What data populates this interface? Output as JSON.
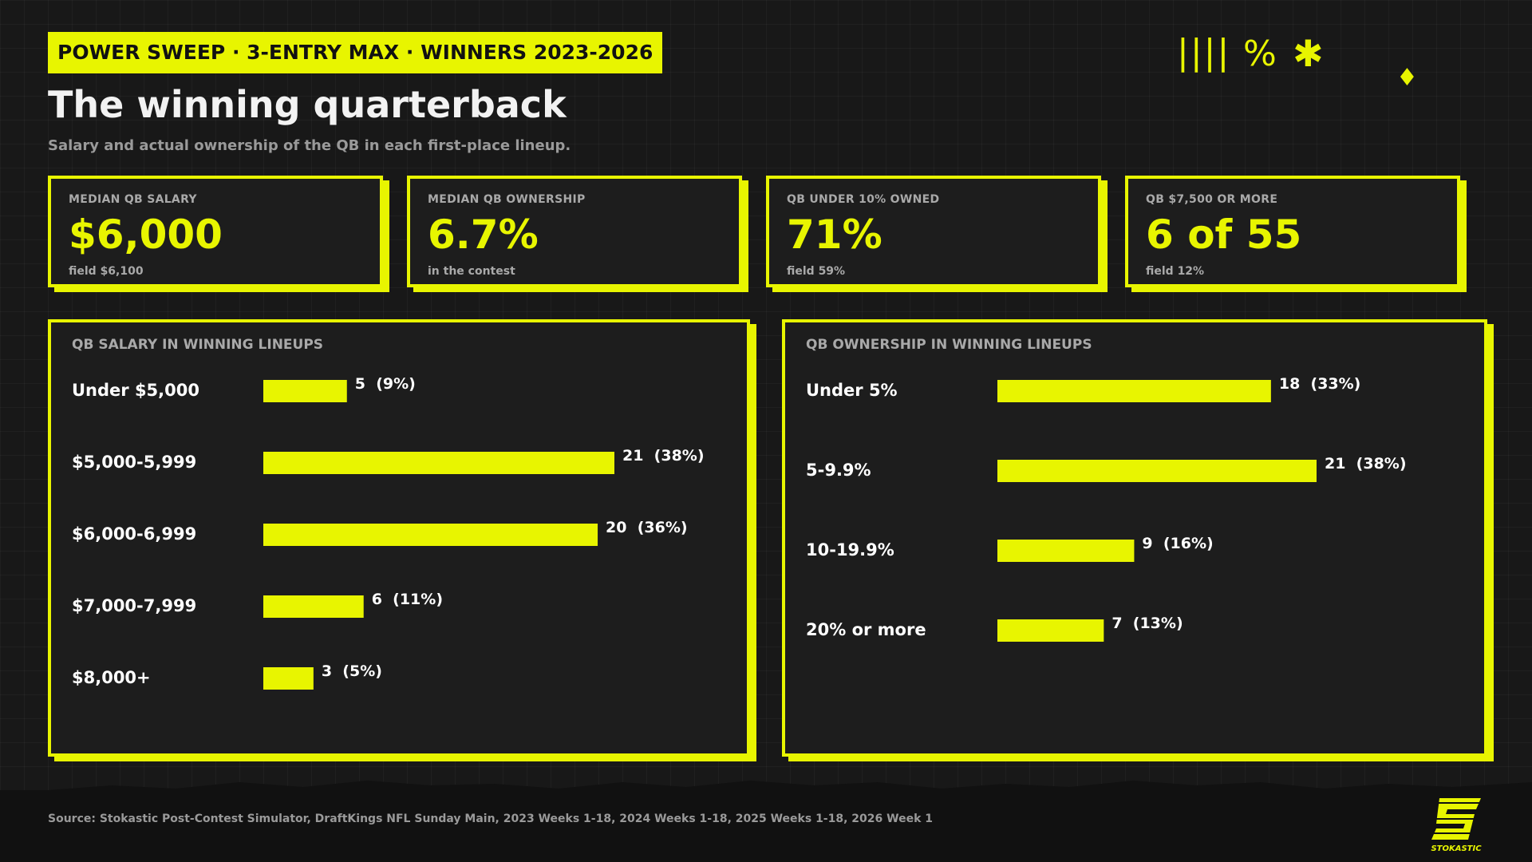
{
  "header": {
    "tagline": "POWER SWEEP · 3-ENTRY MAX · WINNERS 2023-2026",
    "title": "The winning quarterback",
    "subtitle": "Salary and actual ownership of the QB in each first-place lineup."
  },
  "decor": {
    "lines": "||||",
    "percent": "%",
    "asterisk": "✱",
    "diamond": "♦"
  },
  "kpis": [
    {
      "label": "MEDIAN QB SALARY",
      "value": "$6,000",
      "note": "field $6,100"
    },
    {
      "label": "MEDIAN QB OWNERSHIP",
      "value": "6.7%",
      "note": "in the contest"
    },
    {
      "label": "QB UNDER 10% OWNED",
      "value": "71%",
      "note": "field 59%"
    },
    {
      "label": "QB $7,500 OR MORE",
      "value": "6 of 55",
      "note": "field 12%"
    }
  ],
  "chart_data": [
    {
      "type": "bar",
      "orientation": "horizontal",
      "title": "QB SALARY IN WINNING LINEUPS",
      "categories": [
        "Under $5,000",
        "$5,000-5,999",
        "$6,000-6,999",
        "$7,000-7,999",
        "$8,000+"
      ],
      "values": [
        5,
        21,
        20,
        6,
        3
      ],
      "labels": [
        "5  (9%)",
        "21  (38%)",
        "20  (36%)",
        "6  (11%)",
        "3  (5%)"
      ],
      "xlim": [
        0,
        21
      ],
      "grid": false,
      "color": "#e8f500"
    },
    {
      "type": "bar",
      "orientation": "horizontal",
      "title": "QB OWNERSHIP IN WINNING LINEUPS",
      "categories": [
        "Under 5%",
        "5-9.9%",
        "10-19.9%",
        "20% or more"
      ],
      "values": [
        18,
        21,
        9,
        7
      ],
      "labels": [
        "18  (33%)",
        "21  (38%)",
        "9  (16%)",
        "7  (13%)"
      ],
      "xlim": [
        0,
        21
      ],
      "grid": false,
      "color": "#e8f500"
    }
  ],
  "footer": {
    "source": "Source: Stokastic Post-Contest Simulator, DraftKings NFL Sunday Main, 2023 Weeks 1-18, 2024 Weeks 1-18, 2025 Weeks 1-18, 2026 Week 1",
    "logo_text": "STOKASTIC"
  },
  "colors": {
    "accent": "#e8f500",
    "background": "#181818",
    "panel": "#1d1d1d",
    "muted_text": "#a9a9a9"
  }
}
